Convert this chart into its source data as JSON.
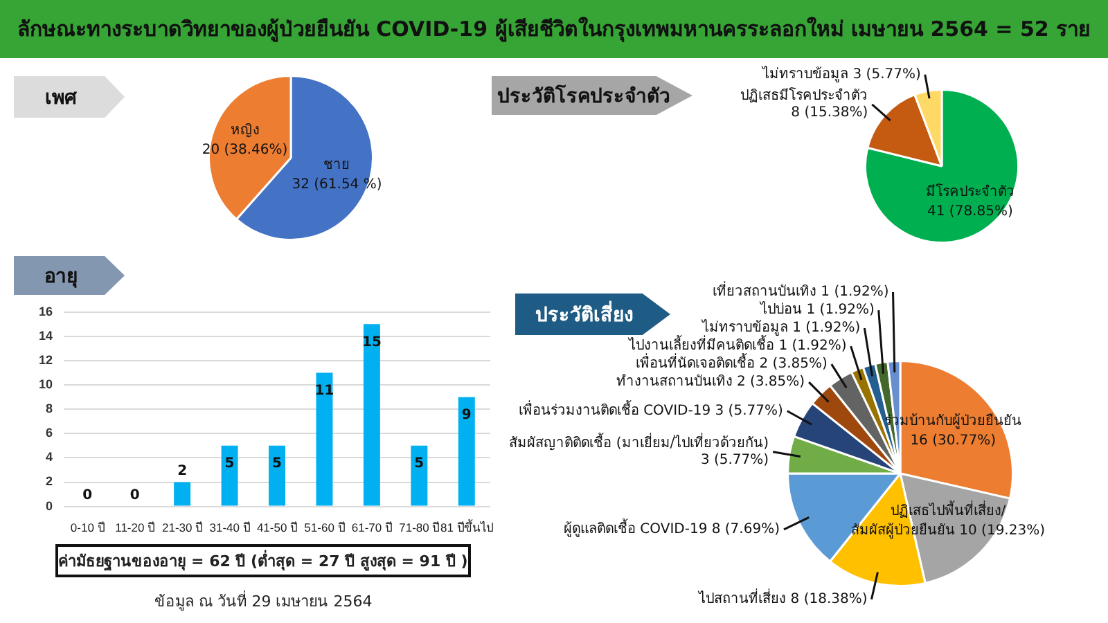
{
  "chart_data": [
    {
      "type": "pie",
      "title": "ลักษณะทางระบาดวิทยาของผู้ป่วยยืนยัน COVID-19 ผู้เสียชีวิตในกรุงเทพมหานครระลอกใหม่ เมษายน 2564 = 52 ราย",
      "subtitle": "เพศ",
      "categories": [
        "ชาย",
        "หญิง"
      ],
      "values": [
        32,
        20
      ],
      "colors": [
        "#4472c4",
        "#ed7d31"
      ],
      "value_labels": [
        "32 (61.54 %)",
        "20 (38.46%)"
      ]
    },
    {
      "type": "pie",
      "title": "ประวัติโรคประจำตัว",
      "categories": [
        "มีโรคประจำตัว",
        "ปฏิเสธมีโรคประจำตัว",
        "ไม่ทราบข้อมูล"
      ],
      "values": [
        41,
        8,
        3
      ],
      "colors": [
        "#00b050",
        "#c55a11",
        "#ffd966"
      ],
      "value_labels": [
        "41 (78.85%)",
        "8 (15.38%)",
        "3 (5.77%)"
      ]
    },
    {
      "type": "bar",
      "title": "อายุ",
      "categories": [
        "0-10 ปี",
        "11-20 ปี",
        "21-30 ปี",
        "31-40 ปี",
        "41-50 ปี",
        "51-60 ปี",
        "61-70 ปี",
        "71-80 ปี",
        "81 ปีขึ้นไป"
      ],
      "values": [
        0,
        0,
        2,
        5,
        5,
        11,
        15,
        5,
        9
      ],
      "color": "#00b0f0",
      "ylim": [
        0,
        16
      ],
      "yticks": [
        0,
        2,
        4,
        6,
        8,
        10,
        12,
        14,
        16
      ],
      "grid": "y",
      "data_labels": true,
      "annotations": [
        "ค่ามัธยฐานของอายุ = 62 ปี  (ต่ำสุด = 27 ปี  สูงสุด = 91 ปี )",
        "ข้อมูล ณ วันที่ 29 เมษายน 2564"
      ]
    },
    {
      "type": "pie",
      "title": "ประวัติเสี่ยง",
      "categories": [
        "ร่วมบ้านกับผู้ป่วยยืนยัน",
        "ปฏิเสธไปพื้นที่เสี่ยง/สัมผัสผู้ป่วยยืนยัน",
        "ไปสถานที่เสี่ยง",
        "ผู้ดูแลติดเชื้อ COVID-19",
        "สัมผัสญาติติดเชื้อ (มาเยี่ยม/ไปเที่ยวด้วยกัน)",
        "เพื่อนร่วมงานติดเชื้อ COVID-19",
        "ทำงานสถานบันเทิง",
        "เพื่อนที่นัดเจอติดเชื้อ",
        "ไปงานเลี้ยงที่มีคนติดเชื้อ",
        "ไม่ทราบข้อมูล",
        "ไปบ่อน",
        "เที่ยวสถานบันเทิง"
      ],
      "values": [
        16,
        10,
        8,
        8,
        3,
        3,
        2,
        2,
        1,
        1,
        1,
        1
      ],
      "colors": [
        "#ed7d31",
        "#a5a5a5",
        "#ffc000",
        "#5b9bd5",
        "#70ad47",
        "#264478",
        "#9e480e",
        "#636363",
        "#997300",
        "#255e91",
        "#43682b",
        "#698ed0"
      ],
      "value_labels": [
        "16 (30.77%)",
        "10 (19.23%)",
        "8 (18.38%)",
        "8 (7.69%)",
        "3 (5.77%)",
        "3 (5.77%)",
        "2 (3.85%)",
        "2 (3.85%)",
        "1 (1.92%)",
        "1 (1.92%)",
        "1 (1.92%)",
        "1 (1.92%)"
      ]
    }
  ]
}
